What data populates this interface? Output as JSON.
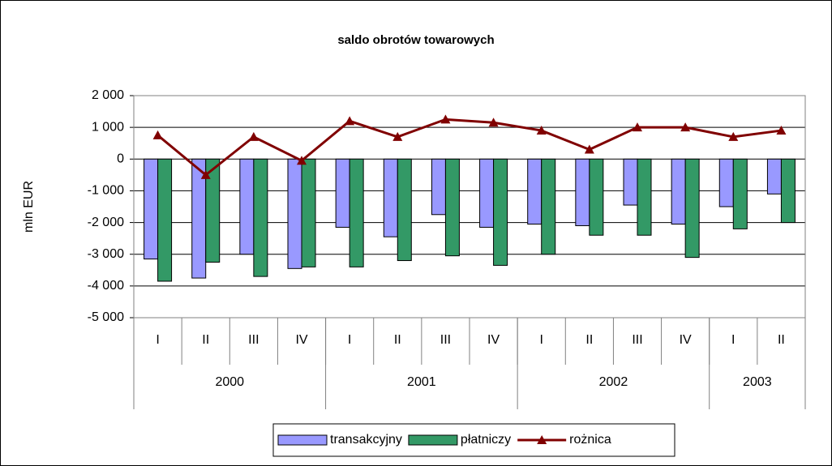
{
  "chart_data": {
    "type": "bar",
    "title": "saldo obrotów towarowych",
    "y_label": "mln EUR",
    "categories": [
      "I",
      "II",
      "III",
      "IV",
      "I",
      "II",
      "III",
      "IV",
      "I",
      "II",
      "III",
      "IV",
      "I",
      "II"
    ],
    "category_groups": [
      {
        "name": "2000",
        "count": 4
      },
      {
        "name": "2001",
        "count": 4
      },
      {
        "name": "2002",
        "count": 4
      },
      {
        "name": "2003",
        "count": 2
      }
    ],
    "series": [
      {
        "name": "transakcyjny",
        "type": "bar",
        "color": "#9999ff",
        "values": [
          -3150,
          -3750,
          -3000,
          -3450,
          -2150,
          -2450,
          -1750,
          -2150,
          -2050,
          -2100,
          -1450,
          -2050,
          -1500,
          -1100
        ]
      },
      {
        "name": "płatniczy",
        "type": "bar",
        "color": "#339966",
        "values": [
          -3850,
          -3250,
          -3700,
          -3400,
          -3400,
          -3200,
          -3050,
          -3350,
          -3000,
          -2400,
          -2400,
          -3100,
          -2200,
          -2000
        ]
      },
      {
        "name": "rożnica",
        "type": "line",
        "color": "#800000",
        "values": [
          750,
          -500,
          700,
          -50,
          1200,
          700,
          1250,
          1150,
          900,
          300,
          1000,
          1000,
          700,
          900
        ]
      }
    ],
    "ylim": [
      -5000,
      2000
    ],
    "yticks": [
      {
        "value": -5000,
        "label": "-5 000"
      },
      {
        "value": -4000,
        "label": "-4 000"
      },
      {
        "value": -3000,
        "label": "-3 000"
      },
      {
        "value": -2000,
        "label": "-2 000"
      },
      {
        "value": -1000,
        "label": "-1 000"
      },
      0,
      {
        "value": 1000,
        "label": "1 000"
      },
      {
        "value": 2000,
        "label": "2 000"
      }
    ],
    "grid": true,
    "legend": "bottom"
  }
}
